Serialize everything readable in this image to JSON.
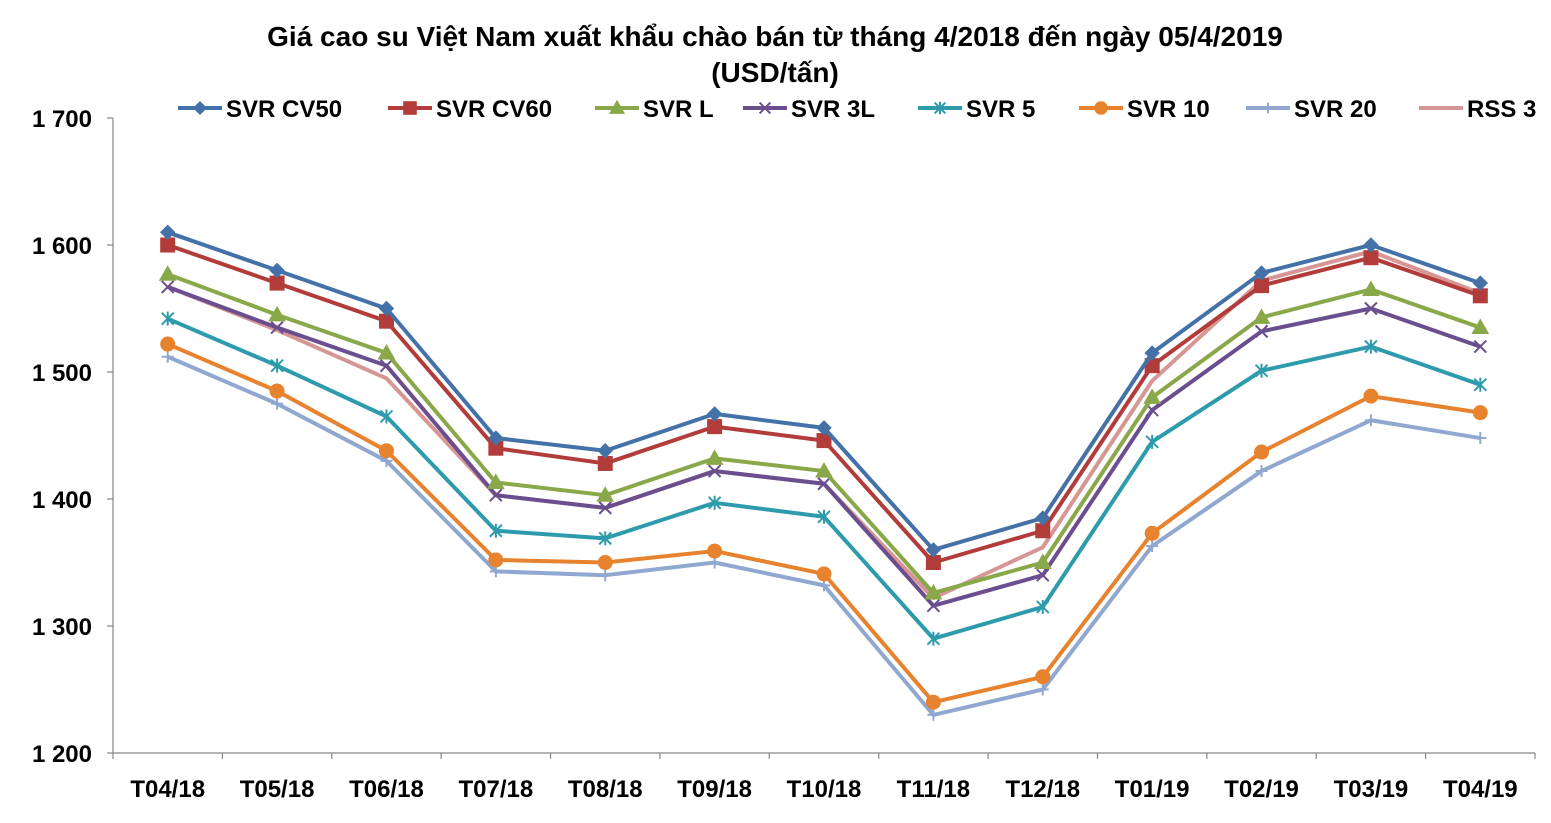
{
  "chart_data": {
    "type": "line",
    "title": "Giá cao su Việt Nam xuất khẩu chào bán từ tháng 4/2018 đến ngày 05/4/2019",
    "subtitle": "(USD/tấn)",
    "xlabel": "",
    "ylabel": "",
    "ylim": [
      1200,
      1700
    ],
    "yticks": [
      1200,
      1300,
      1400,
      1500,
      1600,
      1700
    ],
    "ytick_labels": [
      "1 200",
      "1 300",
      "1 400",
      "1 500",
      "1 600",
      "1 700"
    ],
    "grid": false,
    "legend_position": "top",
    "categories": [
      "T04/18",
      "T05/18",
      "T06/18",
      "T07/18",
      "T08/18",
      "T09/18",
      "T10/18",
      "T11/18",
      "T12/18",
      "T01/19",
      "T02/19",
      "T03/19",
      "T04/19"
    ],
    "series": [
      {
        "name": "SVR CV50",
        "color": "#4472A8",
        "marker": "diamond",
        "values": [
          1610,
          1580,
          1550,
          1448,
          1438,
          1467,
          1456,
          1360,
          1385,
          1515,
          1578,
          1600,
          1570
        ]
      },
      {
        "name": "SVR CV60",
        "color": "#B23C3A",
        "marker": "square",
        "values": [
          1600,
          1570,
          1540,
          1440,
          1428,
          1457,
          1446,
          1350,
          1375,
          1505,
          1568,
          1590,
          1560
        ]
      },
      {
        "name": "SVR L",
        "color": "#89A84A",
        "marker": "triangle",
        "values": [
          1577,
          1545,
          1515,
          1413,
          1403,
          1432,
          1422,
          1326,
          1350,
          1480,
          1543,
          1565,
          1535
        ]
      },
      {
        "name": "SVR 3L",
        "color": "#6A4E8E",
        "marker": "x",
        "values": [
          1567,
          1535,
          1505,
          1403,
          1393,
          1422,
          1412,
          1316,
          1340,
          1470,
          1532,
          1550,
          1520
        ]
      },
      {
        "name": "SVR 5",
        "color": "#2E9BAD",
        "marker": "asterisk",
        "values": [
          1542,
          1505,
          1465,
          1375,
          1369,
          1397,
          1386,
          1290,
          1315,
          1445,
          1501,
          1520,
          1490
        ]
      },
      {
        "name": "SVR 10",
        "color": "#E7822E",
        "marker": "circle",
        "values": [
          1522,
          1485,
          1438,
          1352,
          1350,
          1359,
          1341,
          1240,
          1260,
          1373,
          1437,
          1481,
          1468
        ]
      },
      {
        "name": "SVR 20",
        "color": "#90A8D0",
        "marker": "plus",
        "values": [
          1512,
          1475,
          1430,
          1343,
          1340,
          1350,
          1332,
          1230,
          1250,
          1363,
          1422,
          1462,
          1448
        ]
      },
      {
        "name": "RSS 3",
        "color": "#D69694",
        "marker": "none",
        "values": [
          1567,
          1533,
          1495,
          1403,
          1393,
          1422,
          1412,
          1322,
          1362,
          1493,
          1572,
          1595,
          1562
        ]
      }
    ]
  }
}
